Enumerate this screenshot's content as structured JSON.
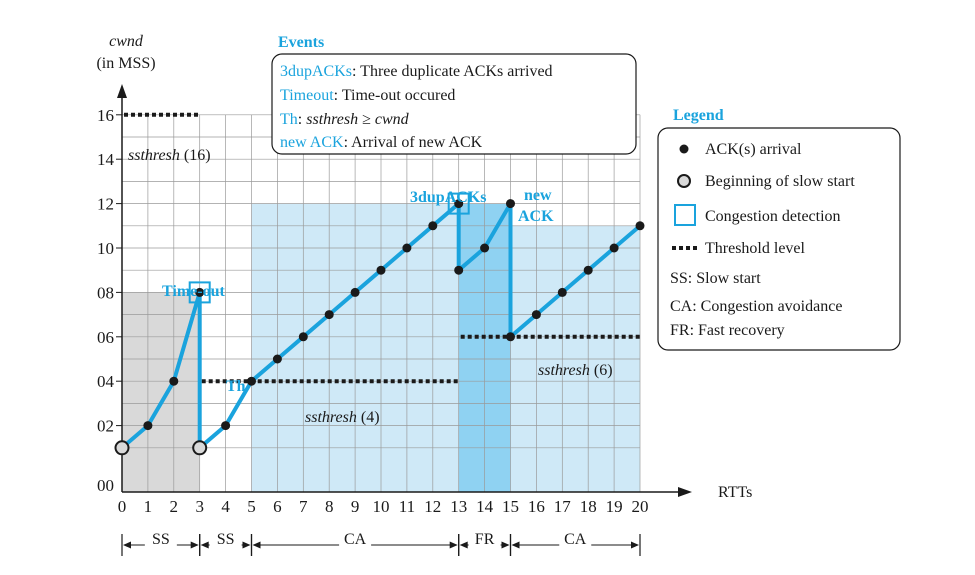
{
  "y_axis": {
    "label_line1": "cwnd",
    "label_line2": "(in MSS)",
    "ticks": [
      "00",
      "02",
      "04",
      "06",
      "08",
      "10",
      "12",
      "14",
      "16"
    ]
  },
  "x_axis": {
    "label": "RTTs",
    "ticks": [
      "0",
      "1",
      "2",
      "3",
      "4",
      "5",
      "6",
      "7",
      "8",
      "9",
      "10",
      "11",
      "12",
      "13",
      "14",
      "15",
      "16",
      "17",
      "18",
      "19",
      "20"
    ]
  },
  "events_box": {
    "title": "Events",
    "lines": [
      {
        "key": "3dupACKs",
        "text": ": Three duplicate ACKs arrived"
      },
      {
        "key": "Timeout",
        "text": ": Time-out occured"
      },
      {
        "key": "Th",
        "text": ": ",
        "italic_text": "ssthresh ≥ cwnd"
      },
      {
        "key": "new ACK",
        "text": ": Arrival of new ACK"
      }
    ]
  },
  "legend": {
    "title": "Legend",
    "items": [
      {
        "symbol": "dot",
        "label": "ACK(s) arrival"
      },
      {
        "symbol": "ring",
        "label": "Beginning of slow start"
      },
      {
        "symbol": "square",
        "label": "Congestion detection"
      },
      {
        "symbol": "dashes",
        "label": "Threshold level"
      },
      {
        "symbol": "none",
        "label": "SS: Slow start"
      },
      {
        "symbol": "none",
        "label": "CA: Congestion avoidance"
      },
      {
        "symbol": "none",
        "label": "FR: Fast recovery"
      }
    ]
  },
  "annotations": {
    "timeout": "Time-out",
    "th": "Th",
    "dupacks": "3dupACKs",
    "newack_line1": "new",
    "newack_line2": "ACK",
    "ssthresh_16": {
      "italic": "ssthresh",
      "value": " (16)"
    },
    "ssthresh_4": {
      "italic": "ssthresh",
      "value": " (4)"
    },
    "ssthresh_6": {
      "italic": "ssthresh",
      "value": " (6)"
    }
  },
  "phases": [
    {
      "label": "SS",
      "from": 0,
      "to": 3
    },
    {
      "label": "SS",
      "from": 3,
      "to": 5
    },
    {
      "label": "CA",
      "from": 5,
      "to": 13
    },
    {
      "label": "FR",
      "from": 13,
      "to": 15
    },
    {
      "label": "CA",
      "from": 15,
      "to": 20
    }
  ],
  "colors": {
    "line": "#1aa3dd",
    "region_ss": "#d9d9d9",
    "region_ca": "#cfe9f7",
    "region_fr": "#8fd2f2",
    "text_blue": "#1aa3dd",
    "grid": "#9a9a9a"
  },
  "chart_data": {
    "type": "line",
    "x": [
      0,
      1,
      2,
      3,
      3,
      4,
      5,
      6,
      7,
      8,
      9,
      10,
      11,
      12,
      13,
      13,
      14,
      15,
      15,
      16,
      17,
      18,
      19,
      20
    ],
    "y": [
      1,
      2,
      4,
      8,
      1,
      2,
      4,
      5,
      6,
      7,
      8,
      9,
      10,
      11,
      12,
      9,
      10,
      12,
      6,
      7,
      8,
      9,
      10,
      11
    ],
    "slow_start_points": [
      [
        0,
        1
      ],
      [
        3,
        1
      ]
    ],
    "congestion_points": [
      [
        3,
        8
      ],
      [
        13,
        12
      ]
    ],
    "thresholds": [
      {
        "value": 16,
        "from": 0,
        "to": 3
      },
      {
        "value": 4,
        "from": 3,
        "to": 13
      },
      {
        "value": 6,
        "from": 13,
        "to": 20
      }
    ],
    "regions": [
      {
        "kind": "ss",
        "from": 0,
        "to": 3,
        "top": 8
      },
      {
        "kind": "ca",
        "from": 5,
        "to": 13,
        "top": 12
      },
      {
        "kind": "fr",
        "from": 13,
        "to": 15,
        "top": 12
      },
      {
        "kind": "ca",
        "from": 15,
        "to": 20,
        "top": 11
      }
    ],
    "xlim": [
      0,
      20
    ],
    "ylim": [
      0,
      16
    ],
    "xlabel": "RTTs",
    "ylabel": "cwnd (in MSS)"
  }
}
